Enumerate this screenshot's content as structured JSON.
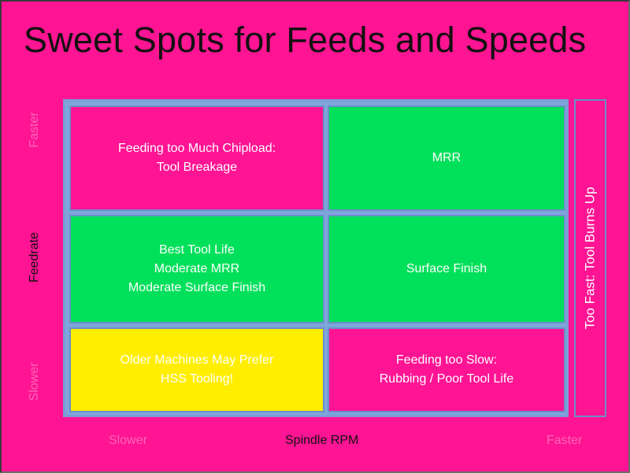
{
  "title": "Sweet Spots for Feeds and Speeds",
  "colors": {
    "background": "#ff1493",
    "green": "#00e05a",
    "yellow": "#ffee00",
    "grid_blue": "#7fa6dc",
    "text_white": "#ffffff",
    "axis_text_dark": "#ff66b8",
    "axis_title": "#111111"
  },
  "y_axis": {
    "label": "Feedrate",
    "high": "Faster",
    "low": "Slower"
  },
  "x_axis": {
    "label": "Spindle RPM",
    "low": "Slower",
    "high": "Faster"
  },
  "side_label": "Too Fast: Tool Burns Up",
  "cells": {
    "top_left": {
      "lines": [
        "Feeding too Much Chipload:",
        "Tool Breakage"
      ],
      "color": "pink"
    },
    "top_right": {
      "lines": [
        "MRR"
      ],
      "color": "green"
    },
    "middle_left": {
      "lines": [
        "Best Tool Life",
        "Moderate MRR",
        "Moderate Surface Finish"
      ],
      "color": "green"
    },
    "middle_right": {
      "lines": [
        "Surface Finish"
      ],
      "color": "green"
    },
    "bottom_left": {
      "lines": [
        "Older Machines May Prefer",
        "HSS Tooling!"
      ],
      "color": "yellow"
    },
    "bottom_right": {
      "lines": [
        "Feeding too Slow:",
        "Rubbing / Poor Tool Life"
      ],
      "color": "pink"
    }
  }
}
